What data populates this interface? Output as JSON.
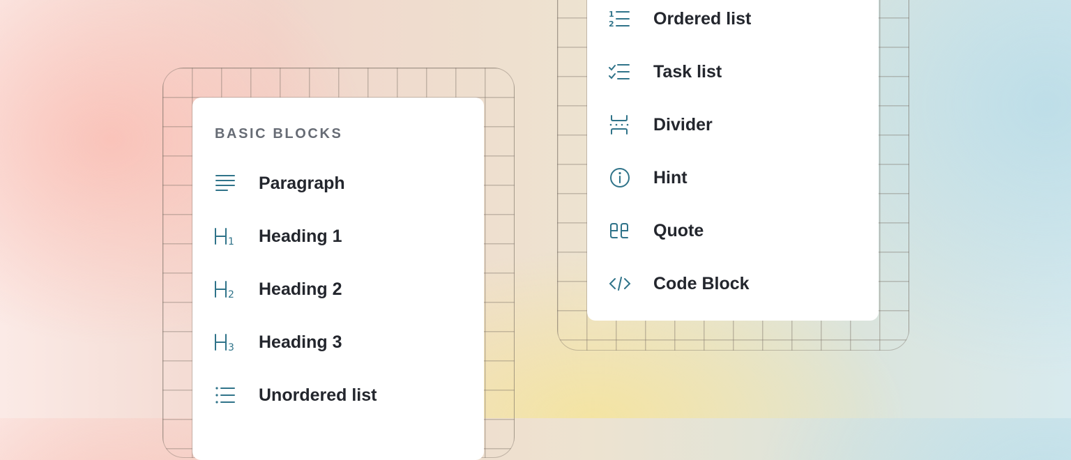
{
  "left_menu": {
    "section_title": "BASIC BLOCKS",
    "items": [
      {
        "label": "Paragraph",
        "icon": "paragraph-icon"
      },
      {
        "label": "Heading 1",
        "icon": "heading-1-icon"
      },
      {
        "label": "Heading 2",
        "icon": "heading-2-icon"
      },
      {
        "label": "Heading 3",
        "icon": "heading-3-icon"
      },
      {
        "label": "Unordered list",
        "icon": "unordered-list-icon"
      }
    ]
  },
  "right_menu": {
    "items": [
      {
        "label": "Ordered list",
        "icon": "ordered-list-icon"
      },
      {
        "label": "Task list",
        "icon": "task-list-icon"
      },
      {
        "label": "Divider",
        "icon": "divider-icon"
      },
      {
        "label": "Hint",
        "icon": "info-icon"
      },
      {
        "label": "Quote",
        "icon": "quote-icon"
      },
      {
        "label": "Code Block",
        "icon": "code-icon"
      }
    ]
  },
  "colors": {
    "icon": "#2f7389",
    "text": "#23262d",
    "section_title": "#676c75"
  }
}
